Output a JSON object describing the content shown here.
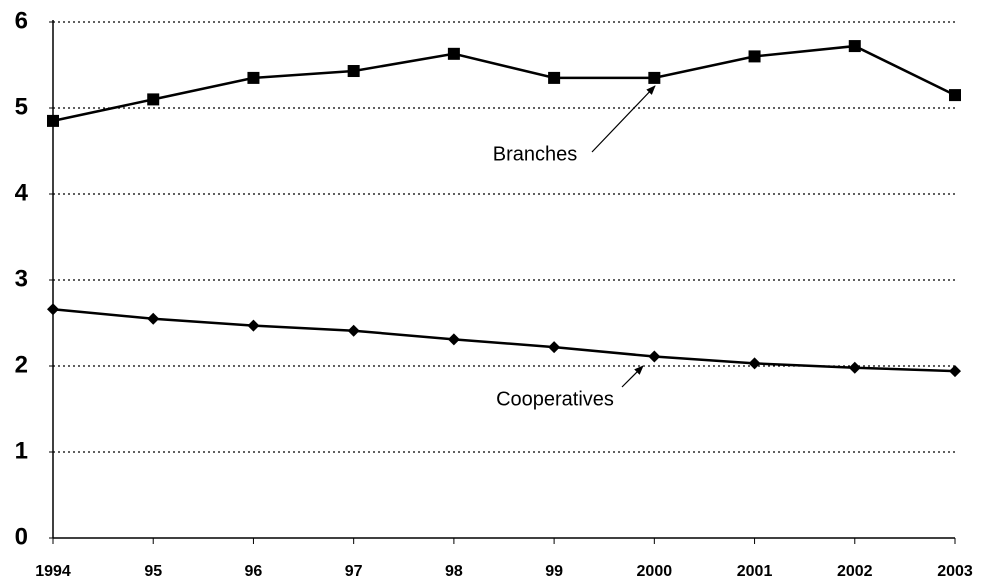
{
  "chart_data": {
    "type": "line",
    "categories": [
      "1994",
      "95",
      "96",
      "97",
      "98",
      "99",
      "2000",
      "2001",
      "2002",
      "2003"
    ],
    "series": [
      {
        "name": "Branches",
        "color": "#000000",
        "marker": "square",
        "values": [
          4.85,
          5.1,
          5.35,
          5.43,
          5.63,
          5.35,
          5.35,
          5.6,
          5.72,
          5.15
        ]
      },
      {
        "name": "Cooperatives",
        "color": "#000000",
        "marker": "diamond",
        "values": [
          2.66,
          2.55,
          2.47,
          2.41,
          2.31,
          2.22,
          2.11,
          2.03,
          1.98,
          1.94
        ]
      }
    ],
    "ylim": [
      0,
      6
    ],
    "yticks": [
      0,
      1,
      2,
      3,
      4,
      5,
      6
    ],
    "grid": true
  }
}
